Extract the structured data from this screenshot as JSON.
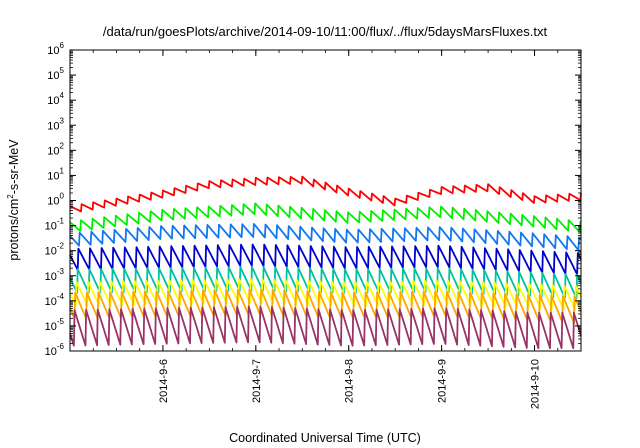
{
  "chart_data": {
    "type": "line",
    "title": "/data/run/goesPlots/archive/2014-09-10/11:00/flux/../flux/5daysMarsFluxes.txt",
    "xlabel": "Coordinated Universal Time (UTC)",
    "ylabel": {
      "prefix": "protons/cm",
      "superscript": "2",
      "suffix": "-s-sr-MeV"
    },
    "yscale": "log",
    "ylim": [
      1e-06,
      1000000.0
    ],
    "y_ticks": [
      {
        "base": "10",
        "exp": "-6"
      },
      {
        "base": "10",
        "exp": "-5"
      },
      {
        "base": "10",
        "exp": "-4"
      },
      {
        "base": "10",
        "exp": "-3"
      },
      {
        "base": "10",
        "exp": "-2"
      },
      {
        "base": "10",
        "exp": "-1"
      },
      {
        "base": "10",
        "exp": "0"
      },
      {
        "base": "10",
        "exp": "1"
      },
      {
        "base": "10",
        "exp": "2"
      },
      {
        "base": "10",
        "exp": "3"
      },
      {
        "base": "10",
        "exp": "4"
      },
      {
        "base": "10",
        "exp": "5"
      },
      {
        "base": "10",
        "exp": "6"
      }
    ],
    "xlim": [
      "2014-09-05T00:00",
      "2014-09-10T12:00"
    ],
    "x_ticks": [
      "2014-9-6",
      "2014-9-7",
      "2014-9-8",
      "2014-9-9",
      "2014-9-10"
    ],
    "grid": false,
    "series": [
      {
        "color": "#ff0000",
        "x": [
          "2014-09-05T00:00",
          "2014-09-05T12:00",
          "2014-09-06T00:00",
          "2014-09-06T12:00",
          "2014-09-07T00:00",
          "2014-09-07T12:00",
          "2014-09-08T00:00",
          "2014-09-08T12:00",
          "2014-09-09T00:00",
          "2014-09-09T12:00",
          "2014-09-10T00:00",
          "2014-09-10T12:00"
        ],
        "values": [
          0.6,
          1.2,
          2.5,
          6,
          8,
          9,
          3,
          1.2,
          3.5,
          4.5,
          1.5,
          2
        ],
        "tooth_depth": 0.3
      },
      {
        "color": "#00ee00",
        "x": [
          "2014-09-05T00:00",
          "2014-09-06T00:00",
          "2014-09-07T00:00",
          "2014-09-08T00:00",
          "2014-09-09T00:00",
          "2014-09-10T00:00",
          "2014-09-10T12:00"
        ],
        "values": [
          0.15,
          0.45,
          0.8,
          0.35,
          0.6,
          0.25,
          0.15
        ],
        "tooth_depth": 0.45
      },
      {
        "color": "#1177ee",
        "x": [
          "2014-09-05T00:00",
          "2014-09-06T00:00",
          "2014-09-07T00:00",
          "2014-09-08T00:00",
          "2014-09-09T00:00",
          "2014-09-10T00:00",
          "2014-09-10T12:00"
        ],
        "values": [
          0.05,
          0.1,
          0.12,
          0.07,
          0.09,
          0.05,
          0.035
        ],
        "tooth_depth": 0.55
      },
      {
        "color": "#0000cc",
        "x": [
          "2014-09-05T00:00",
          "2014-09-06T00:00",
          "2014-09-07T00:00",
          "2014-09-08T00:00",
          "2014-09-09T00:00",
          "2014-09-10T00:00",
          "2014-09-10T12:00"
        ],
        "values": [
          0.012,
          0.015,
          0.018,
          0.014,
          0.016,
          0.01,
          0.008
        ],
        "tooth_depth": 0.9
      },
      {
        "color": "#00c0a0",
        "x": [
          "2014-09-05T00:00",
          "2014-09-06T00:00",
          "2014-09-07T00:00",
          "2014-09-08T00:00",
          "2014-09-09T00:00",
          "2014-09-10T00:00",
          "2014-09-10T12:00"
        ],
        "values": [
          0.002,
          0.0022,
          0.0025,
          0.002,
          0.0022,
          0.0015,
          0.0012
        ],
        "tooth_depth": 1.0
      },
      {
        "color": "#ffff00",
        "x": [
          "2014-09-05T00:00",
          "2014-09-06T00:00",
          "2014-09-07T00:00",
          "2014-09-08T00:00",
          "2014-09-09T00:00",
          "2014-09-10T00:00",
          "2014-09-10T12:00"
        ],
        "values": [
          0.0006,
          0.0007,
          0.0008,
          0.0006,
          0.0007,
          0.0005,
          0.0004
        ],
        "tooth_depth": 1.0
      },
      {
        "color": "#ffa500",
        "x": [
          "2014-09-05T00:00",
          "2014-09-06T00:00",
          "2014-09-07T00:00",
          "2014-09-08T00:00",
          "2014-09-09T00:00",
          "2014-09-10T00:00",
          "2014-09-10T12:00"
        ],
        "values": [
          0.00022,
          0.00025,
          0.0003,
          0.00022,
          0.00025,
          0.00018,
          0.00015
        ],
        "tooth_depth": 1.1
      },
      {
        "color": "#993366",
        "x": [
          "2014-09-05T00:00",
          "2014-09-06T00:00",
          "2014-09-07T00:00",
          "2014-09-08T00:00",
          "2014-09-09T00:00",
          "2014-09-10T00:00",
          "2014-09-10T12:00"
        ],
        "values": [
          5e-05,
          6e-05,
          7e-05,
          5e-05,
          6e-05,
          4e-05,
          4e-05
        ],
        "tooth_depth": 1.5
      }
    ]
  }
}
